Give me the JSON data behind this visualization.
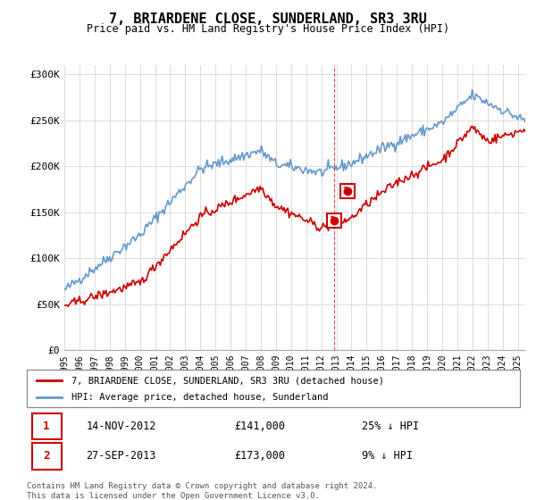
{
  "title": "7, BRIARDENE CLOSE, SUNDERLAND, SR3 3RU",
  "subtitle": "Price paid vs. HM Land Registry's House Price Index (HPI)",
  "xlabel": "",
  "ylabel": "",
  "ylim": [
    0,
    310000
  ],
  "yticks": [
    0,
    50000,
    100000,
    150000,
    200000,
    250000,
    300000
  ],
  "ytick_labels": [
    "£0",
    "£50K",
    "£100K",
    "£150K",
    "£200K",
    "£250K",
    "£300K"
  ],
  "legend_entries": [
    "7, BRIARDENE CLOSE, SUNDERLAND, SR3 3RU (detached house)",
    "HPI: Average price, detached house, Sunderland"
  ],
  "line_colors": [
    "#cc0000",
    "#6699cc"
  ],
  "transaction1_date": "14-NOV-2012",
  "transaction1_price": "£141,000",
  "transaction1_note": "25% ↓ HPI",
  "transaction2_date": "27-SEP-2013",
  "transaction2_price": "£173,000",
  "transaction2_note": "9% ↓ HPI",
  "footer": "Contains HM Land Registry data © Crown copyright and database right 2024.\nThis data is licensed under the Open Government Licence v3.0.",
  "marker_color": "#cc0000",
  "vline_color": "#cc0000",
  "box_color": "#cc0000",
  "bg_color": "#ffffff",
  "grid_color": "#dddddd"
}
